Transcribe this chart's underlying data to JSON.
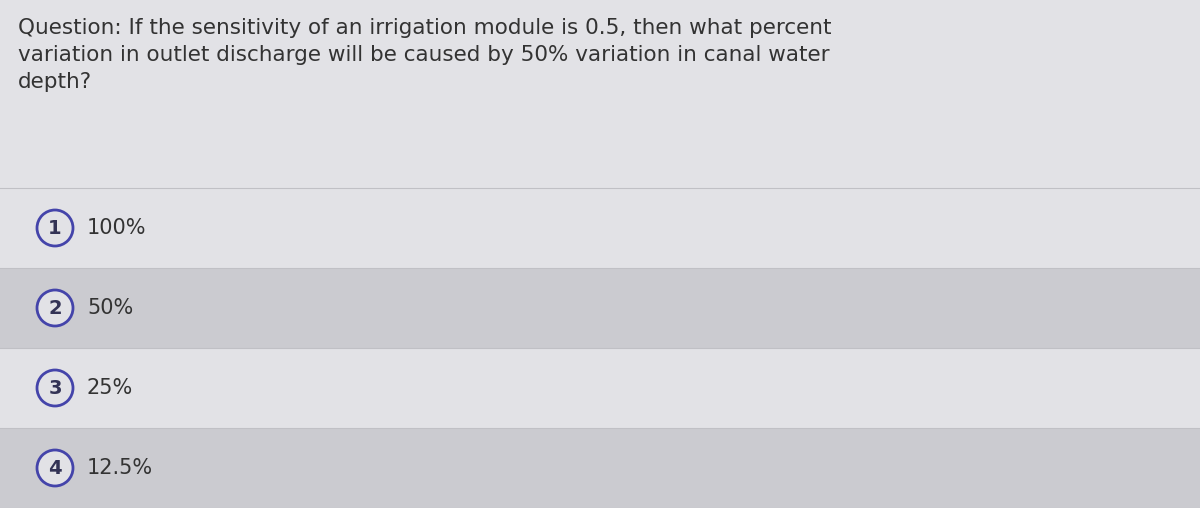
{
  "question": "Question: If the sensitivity of an irrigation module is 0.5, then what percent\nvariation in outlet discharge will be caused by 50% variation in canal water\ndepth?",
  "options": [
    {
      "num": "1",
      "text": "100%"
    },
    {
      "num": "2",
      "text": "50%"
    },
    {
      "num": "3",
      "text": "25%"
    },
    {
      "num": "4",
      "text": "12.5%"
    }
  ],
  "bg_color": "#d4d4d8",
  "question_bg": "#e2e2e6",
  "stripe_light": "#e2e2e6",
  "stripe_dark": "#cbcbd0",
  "text_color": "#333333",
  "circle_edge_color": "#4444aa",
  "circle_face_color": "#e2e2e6",
  "circle_num_color": "#333355",
  "question_fontsize": 15.5,
  "option_fontsize": 15,
  "fig_width": 12.0,
  "fig_height": 5.08,
  "dpi": 100
}
